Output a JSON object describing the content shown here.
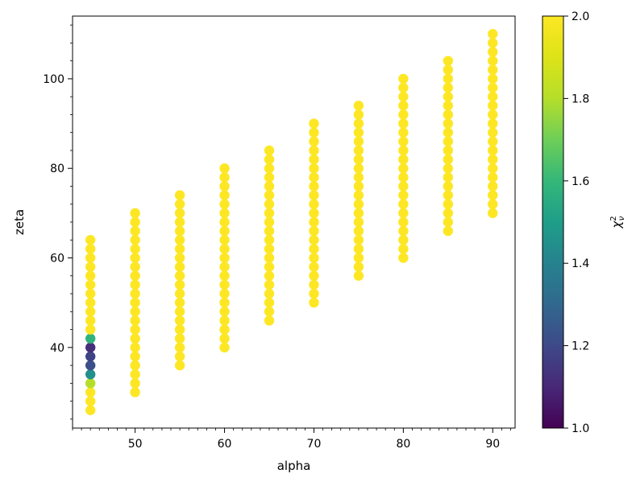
{
  "chart_data": {
    "type": "scatter",
    "xlabel": "alpha",
    "ylabel": "zeta",
    "xlim": [
      43,
      92.5
    ],
    "ylim": [
      22,
      114
    ],
    "xticks": [
      50,
      60,
      70,
      80,
      90
    ],
    "yticks": [
      40,
      60,
      80,
      100
    ],
    "grid": false,
    "colormap": "viridis",
    "colorbar": {
      "label": "χ²ν",
      "range": [
        1.0,
        2.0
      ],
      "ticks": [
        1.0,
        1.2,
        1.4,
        1.6,
        1.8,
        2.0
      ],
      "tick_labels": [
        "1.0",
        "1.2",
        "1.4",
        "1.6",
        "1.8",
        "2.0"
      ]
    },
    "columns": [
      {
        "alpha": 45,
        "zeta_min": 26,
        "zeta_max": 64,
        "zeta_step": 2
      },
      {
        "alpha": 50,
        "zeta_min": 30,
        "zeta_max": 70,
        "zeta_step": 2
      },
      {
        "alpha": 55,
        "zeta_min": 36,
        "zeta_max": 74,
        "zeta_step": 2
      },
      {
        "alpha": 60,
        "zeta_min": 40,
        "zeta_max": 80,
        "zeta_step": 2
      },
      {
        "alpha": 65,
        "zeta_min": 46,
        "zeta_max": 84,
        "zeta_step": 2
      },
      {
        "alpha": 70,
        "zeta_min": 50,
        "zeta_max": 90,
        "zeta_step": 2
      },
      {
        "alpha": 75,
        "zeta_min": 56,
        "zeta_max": 94,
        "zeta_step": 2
      },
      {
        "alpha": 80,
        "zeta_min": 60,
        "zeta_max": 100,
        "zeta_step": 2
      },
      {
        "alpha": 85,
        "zeta_min": 66,
        "zeta_max": 104,
        "zeta_step": 2
      },
      {
        "alpha": 90,
        "zeta_min": 70,
        "zeta_max": 110,
        "zeta_step": 2
      }
    ],
    "default_chi2": 2.0,
    "special_points": [
      {
        "alpha": 45,
        "zeta": 32,
        "chi2": 1.8
      },
      {
        "alpha": 45,
        "zeta": 34,
        "chi2": 1.45
      },
      {
        "alpha": 45,
        "zeta": 36,
        "chi2": 1.22
      },
      {
        "alpha": 45,
        "zeta": 38,
        "chi2": 1.18
      },
      {
        "alpha": 45,
        "zeta": 40,
        "chi2": 1.12
      },
      {
        "alpha": 45,
        "zeta": 42,
        "chi2": 1.58
      }
    ]
  }
}
